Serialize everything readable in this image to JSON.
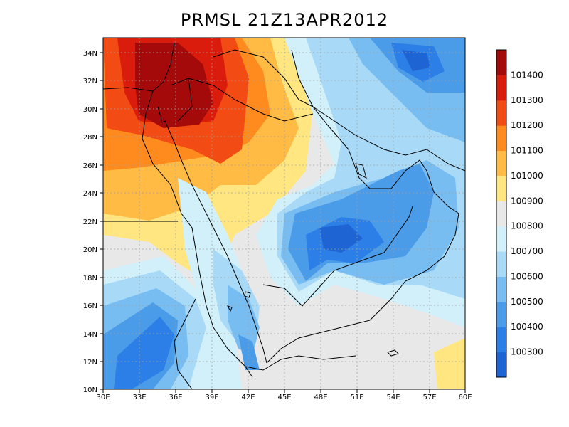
{
  "title": "PRMSL 21Z13APR2012",
  "lon_labels": [
    "30E",
    "33E",
    "36E",
    "39E",
    "42E",
    "45E",
    "48E",
    "51E",
    "54E",
    "57E",
    "60E"
  ],
  "lat_labels": [
    "10N",
    "12N",
    "14N",
    "16N",
    "18N",
    "20N",
    "22N",
    "24N",
    "26N",
    "28N",
    "30N",
    "32N",
    "34N"
  ],
  "colorbar": {
    "labels": [
      "100300",
      "100400",
      "100500",
      "100600",
      "100700",
      "100800",
      "100900",
      "101000",
      "101100",
      "101200",
      "101300",
      "101400"
    ],
    "colors": [
      "#1e64d2",
      "#2b7fe6",
      "#4a9be8",
      "#78bdf2",
      "#a8daf7",
      "#d2f0fa",
      "#e8e8e8",
      "#ffe680",
      "#ffbb44",
      "#ff8a1e",
      "#f24b14",
      "#d91c0c",
      "#a50a0a"
    ]
  },
  "colors": {
    "low_center": "#1e64d2",
    "high_center": "#a50a0a",
    "background": "#e8e8e8",
    "coast": "#000000",
    "grid": "#a0a0a0"
  }
}
